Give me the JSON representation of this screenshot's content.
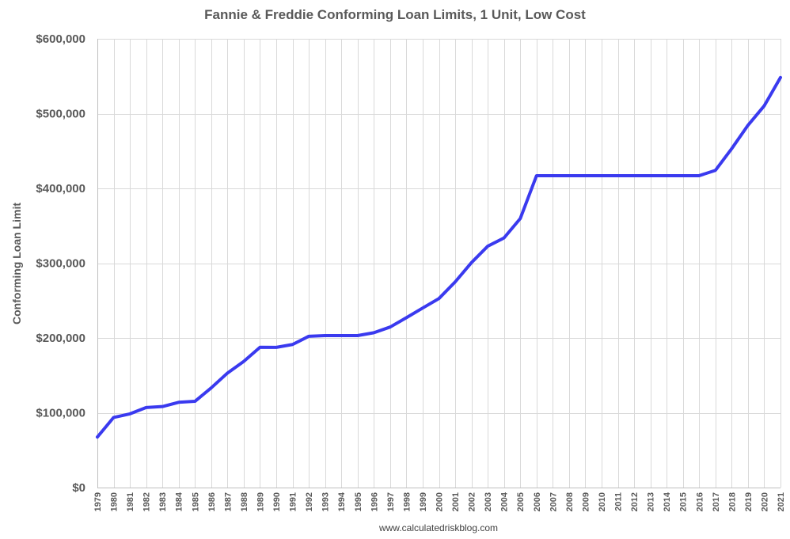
{
  "chart_data": {
    "type": "line",
    "title": "Fannie & Freddie Conforming Loan Limits, 1 Unit, Low Cost",
    "xlabel": "",
    "ylabel": "Conforming Loan Limit",
    "source": "www.calculatedriskblog.com",
    "ylim": [
      0,
      600000
    ],
    "y_ticks": [
      {
        "value": 0,
        "label": "$0"
      },
      {
        "value": 100000,
        "label": "$100,000"
      },
      {
        "value": 200000,
        "label": "$200,000"
      },
      {
        "value": 300000,
        "label": "$300,000"
      },
      {
        "value": 400000,
        "label": "$400,000"
      },
      {
        "value": 500000,
        "label": "$500,000"
      },
      {
        "value": 600000,
        "label": "$600,000"
      }
    ],
    "grid": true,
    "legend": "none",
    "line_color": "#3a3aef",
    "categories": [
      "1979",
      "1980",
      "1981",
      "1982",
      "1983",
      "1984",
      "1985",
      "1986",
      "1987",
      "1988",
      "1989",
      "1990",
      "1991",
      "1992",
      "1993",
      "1994",
      "1995",
      "1996",
      "1997",
      "1998",
      "1999",
      "2000",
      "2001",
      "2002",
      "2003",
      "2004",
      "2005",
      "2006",
      "2007",
      "2008",
      "2009",
      "2010",
      "2011",
      "2012",
      "2013",
      "2014",
      "2015",
      "2016",
      "2017",
      "2018",
      "2019",
      "2020",
      "2021"
    ],
    "values": [
      67500,
      93750,
      98500,
      107000,
      108300,
      114000,
      115300,
      133250,
      153100,
      168700,
      187600,
      187450,
      191250,
      202300,
      203150,
      203150,
      203150,
      207000,
      214600,
      227150,
      240000,
      252700,
      275000,
      300700,
      322700,
      333700,
      359650,
      417000,
      417000,
      417000,
      417000,
      417000,
      417000,
      417000,
      417000,
      417000,
      417000,
      417000,
      424100,
      453100,
      484350,
      510400,
      548250
    ]
  }
}
